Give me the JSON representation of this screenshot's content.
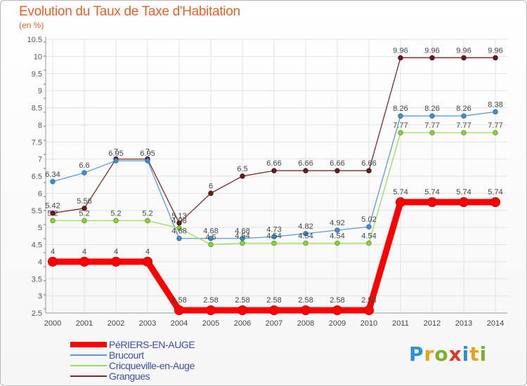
{
  "title": "Evolution du Taux de Taxe d'Habitation",
  "subtitle": "(en %)",
  "logo_text": "Proxiti",
  "logo_colors": [
    "#2d8fd6",
    "#e8a21c",
    "#7ab22f",
    "#d93b2b",
    "#2d8fd6",
    "#e8a21c",
    "#7ab22f"
  ],
  "chart_data": {
    "type": "line",
    "x": [
      "2000",
      "2001",
      "2002",
      "2003",
      "2004",
      "2005",
      "2006",
      "2007",
      "2008",
      "2009",
      "2010",
      "2011",
      "2012",
      "2013",
      "2014"
    ],
    "ylim": [
      2.5,
      10.5
    ],
    "yticks": [
      "2.5",
      "3",
      "3.5",
      "4",
      "4.5",
      "5",
      "5.5",
      "6",
      "6.5",
      "7",
      "7.5",
      "8",
      "8.5",
      "9",
      "9.5",
      "10",
      "10.5"
    ],
    "grid": true,
    "legend_position": "bottom-left",
    "series": [
      {
        "name": "PéRIERS-EN-AUGE",
        "color": "#ff0000",
        "values": [
          4,
          4,
          4,
          4,
          2.58,
          2.58,
          2.58,
          2.58,
          2.58,
          2.58,
          2.58,
          5.74,
          5.74,
          5.74,
          5.74
        ],
        "labels": [
          "4",
          "4",
          "4",
          "4",
          "2.58",
          "2.58",
          "2.58",
          "2.58",
          "2.58",
          "2.58",
          "2.58",
          "5.74",
          "5.74",
          "5.74",
          "5.74"
        ]
      },
      {
        "name": "Brucourt",
        "color": "#5b9bd5",
        "values": [
          6.34,
          6.6,
          6.95,
          6.95,
          4.68,
          4.68,
          4.68,
          4.73,
          4.82,
          4.92,
          5.02,
          8.26,
          8.26,
          8.26,
          8.38
        ],
        "labels": [
          "6.34",
          "6.6",
          "6.95",
          "6.95",
          "4.68",
          "4.68",
          "4.68",
          "4.73",
          "4.82",
          "4.92",
          "5.02",
          "8.26",
          "8.26",
          "8.26",
          "8.38"
        ]
      },
      {
        "name": "Cricqueville-en-Auge",
        "color": "#99e05a",
        "values": [
          5.2,
          5.2,
          5.2,
          5.2,
          4.98,
          4.5,
          4.54,
          4.54,
          4.54,
          4.54,
          4.54,
          7.77,
          7.77,
          7.77,
          7.77
        ],
        "labels": [
          "5.2",
          "5.2",
          "5.2",
          "5.2",
          "4.98",
          "4.5",
          "4.54",
          "4.54",
          "4.54",
          "4.54",
          "4.54",
          "7.77",
          "7.77",
          "7.77",
          "7.77"
        ]
      },
      {
        "name": "Grangues",
        "color": "#7a2a2a",
        "values": [
          5.42,
          5.56,
          7,
          7,
          5.13,
          6,
          6.5,
          6.66,
          6.66,
          6.66,
          6.66,
          9.96,
          9.96,
          9.96,
          9.96
        ],
        "labels": [
          "5.42",
          "5.56",
          "7",
          "7",
          "5.13",
          "6",
          "6.5",
          "6.66",
          "6.66",
          "6.66",
          "6.66",
          "9.96",
          "9.96",
          "9.96",
          "9.96"
        ]
      }
    ]
  }
}
